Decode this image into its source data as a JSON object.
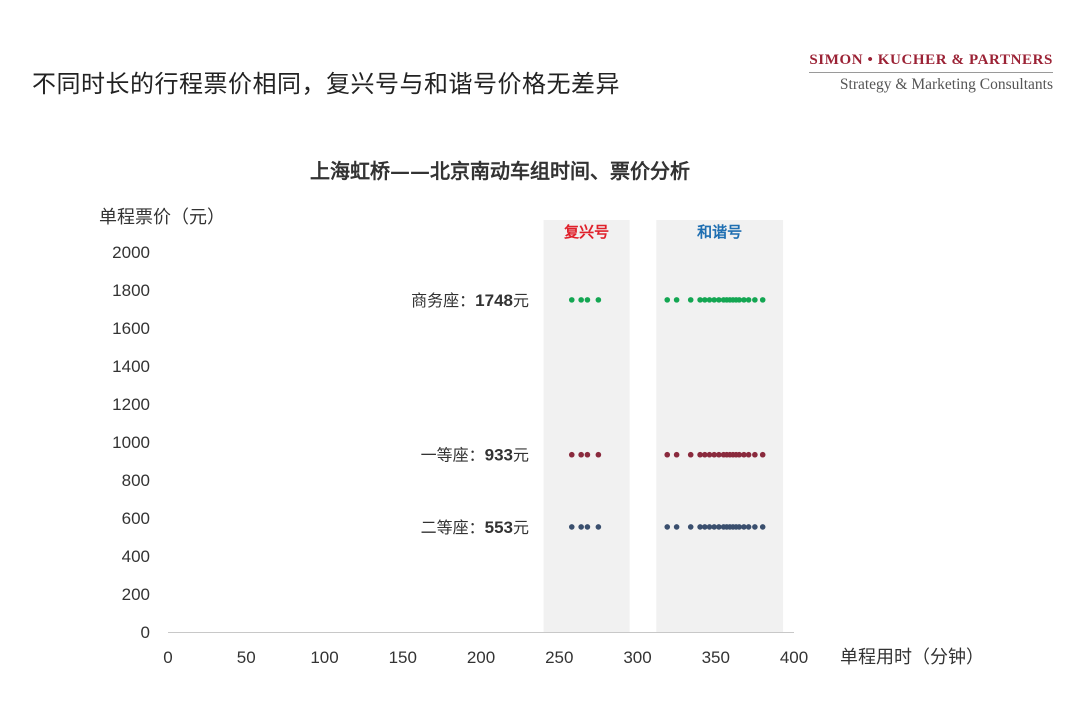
{
  "slide": {
    "title": "不同时长的行程票价相同，复兴号与和谐号价格无差异"
  },
  "brand": {
    "name": "SIMON • KUCHER & PARTNERS",
    "tagline": "Strategy & Marketing Consultants",
    "color": "#9b2235"
  },
  "chart_data": {
    "type": "scatter",
    "title": "上海虹桥——北京南动车组时间、票价分析",
    "xlabel": "单程用时（分钟）",
    "ylabel": "单程票价（元）",
    "xlim": [
      0,
      400
    ],
    "ylim": [
      0,
      2000
    ],
    "xticks": [
      0,
      50,
      100,
      150,
      200,
      250,
      300,
      350,
      400
    ],
    "yticks": [
      0,
      200,
      400,
      600,
      800,
      1000,
      1200,
      1400,
      1600,
      1800,
      2000
    ],
    "grid": false,
    "groups": [
      {
        "label": "复兴号",
        "color": "#e0212b",
        "x_range": [
          240,
          295
        ]
      },
      {
        "label": "和谐号",
        "color": "#1f6fb2",
        "x_range": [
          312,
          393
        ]
      }
    ],
    "series": [
      {
        "name": "商务座",
        "color": "#13a652",
        "price": 1748,
        "annotation": {
          "prefix": "商务座：",
          "value": "1748",
          "suffix": "元"
        },
        "points": [
          [
            258,
            1748
          ],
          [
            264,
            1748
          ],
          [
            268,
            1748
          ],
          [
            275,
            1748
          ],
          [
            319,
            1748
          ],
          [
            325,
            1748
          ],
          [
            334,
            1748
          ],
          [
            340,
            1748
          ],
          [
            343,
            1748
          ],
          [
            346,
            1748
          ],
          [
            349,
            1748
          ],
          [
            352,
            1748
          ],
          [
            355,
            1748
          ],
          [
            357,
            1748
          ],
          [
            359,
            1748
          ],
          [
            361,
            1748
          ],
          [
            363,
            1748
          ],
          [
            365,
            1748
          ],
          [
            368,
            1748
          ],
          [
            371,
            1748
          ],
          [
            375,
            1748
          ],
          [
            380,
            1748
          ]
        ]
      },
      {
        "name": "一等座",
        "color": "#8a2a3d",
        "price": 933,
        "annotation": {
          "prefix": "一等座：",
          "value": "933",
          "suffix": "元"
        },
        "points": [
          [
            258,
            933
          ],
          [
            264,
            933
          ],
          [
            268,
            933
          ],
          [
            275,
            933
          ],
          [
            319,
            933
          ],
          [
            325,
            933
          ],
          [
            334,
            933
          ],
          [
            340,
            933
          ],
          [
            343,
            933
          ],
          [
            346,
            933
          ],
          [
            349,
            933
          ],
          [
            352,
            933
          ],
          [
            355,
            933
          ],
          [
            357,
            933
          ],
          [
            359,
            933
          ],
          [
            361,
            933
          ],
          [
            363,
            933
          ],
          [
            365,
            933
          ],
          [
            368,
            933
          ],
          [
            371,
            933
          ],
          [
            375,
            933
          ],
          [
            380,
            933
          ]
        ]
      },
      {
        "name": "二等座",
        "color": "#3a4f6e",
        "price": 553,
        "annotation": {
          "prefix": "二等座：",
          "value": "553",
          "suffix": "元"
        },
        "points": [
          [
            258,
            553
          ],
          [
            264,
            553
          ],
          [
            268,
            553
          ],
          [
            275,
            553
          ],
          [
            319,
            553
          ],
          [
            325,
            553
          ],
          [
            334,
            553
          ],
          [
            340,
            553
          ],
          [
            343,
            553
          ],
          [
            346,
            553
          ],
          [
            349,
            553
          ],
          [
            352,
            553
          ],
          [
            355,
            553
          ],
          [
            357,
            553
          ],
          [
            359,
            553
          ],
          [
            361,
            553
          ],
          [
            363,
            553
          ],
          [
            365,
            553
          ],
          [
            368,
            553
          ],
          [
            371,
            553
          ],
          [
            375,
            553
          ],
          [
            380,
            553
          ]
        ]
      }
    ]
  }
}
